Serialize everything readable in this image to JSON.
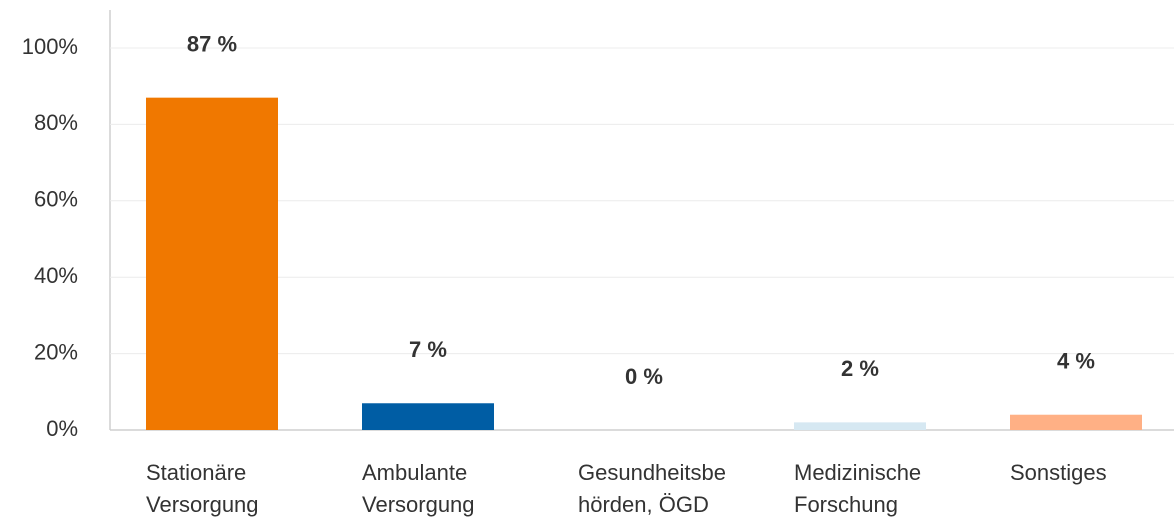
{
  "chart_data": {
    "type": "bar",
    "categories": [
      [
        "Stationäre",
        "Versorgung"
      ],
      [
        "Ambulante",
        "Versorgung"
      ],
      [
        "Gesundheitsbe",
        "hörden, ÖGD"
      ],
      [
        "Medizinische",
        "Forschung"
      ],
      [
        "Sonstiges"
      ]
    ],
    "values": [
      87,
      7,
      0,
      2,
      4
    ],
    "value_labels": [
      "87 %",
      "7 %",
      "0 %",
      "2 %",
      "4 %"
    ],
    "colors": [
      "#f07800",
      "#005da4",
      "#c8c8c8",
      "#d6e8f2",
      "#ffb085"
    ],
    "ylim": [
      0,
      100
    ],
    "yticks": [
      {
        "value": 0,
        "label": "0%"
      },
      {
        "value": 20,
        "label": "20%"
      },
      {
        "value": 40,
        "label": "40%"
      },
      {
        "value": 60,
        "label": "60%"
      },
      {
        "value": 80,
        "label": "80%"
      },
      {
        "value": 100,
        "label": "100%"
      }
    ],
    "grid": true
  }
}
